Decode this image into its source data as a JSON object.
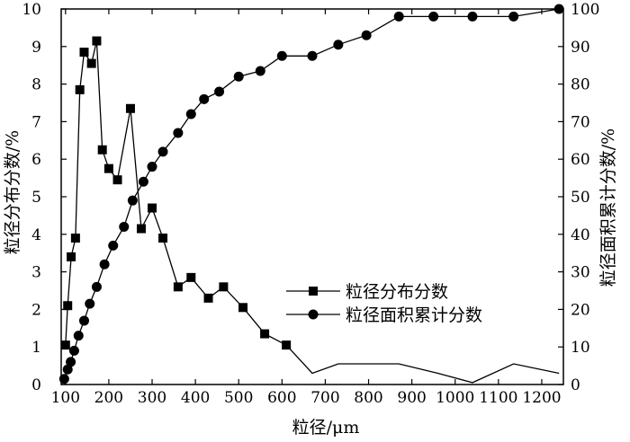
{
  "chart_data": {
    "type": "line",
    "xlabel": "粒径/μm",
    "ylabel_left": "粒径分布分数/%",
    "ylabel_right": "粒径面积累计分数/%",
    "xlim": [
      90,
      1250
    ],
    "ylim_left": [
      0,
      10
    ],
    "ylim_right": [
      0,
      100
    ],
    "xticks": [
      100,
      200,
      300,
      400,
      500,
      600,
      700,
      800,
      900,
      1000,
      1100,
      1200
    ],
    "yticks_left": [
      0,
      1,
      2,
      3,
      4,
      5,
      6,
      7,
      8,
      9,
      10
    ],
    "yticks_right": [
      0,
      10,
      20,
      30,
      40,
      50,
      60,
      70,
      80,
      90,
      100
    ],
    "grid": false,
    "legend_position": "center-right",
    "series": [
      {
        "name": "粒径分布分数",
        "marker": "square",
        "axis": "left",
        "x": [
          100,
          105,
          113,
          123,
          133,
          143,
          160,
          172,
          185,
          200,
          220,
          250,
          275,
          300,
          325,
          360,
          390,
          430,
          465,
          510,
          560,
          610
        ],
        "y": [
          1.05,
          2.1,
          3.4,
          3.9,
          7.85,
          8.85,
          8.55,
          9.15,
          6.25,
          5.75,
          5.45,
          7.35,
          4.15,
          4.7,
          3.9,
          2.6,
          2.85,
          2.3,
          2.6,
          2.05,
          1.35,
          1.05
        ]
      },
      {
        "name": "",
        "marker": "none",
        "axis": "left",
        "x": [
          610,
          670,
          730,
          870,
          960,
          1040,
          1135,
          1240
        ],
        "y": [
          1.05,
          0.3,
          0.55,
          0.55,
          0.3,
          0.05,
          0.55,
          0.3
        ]
      },
      {
        "name": "粒径面积累计分数",
        "marker": "circle",
        "axis": "right",
        "x": [
          97,
          105,
          112,
          120,
          130,
          143,
          156,
          172,
          190,
          210,
          235,
          255,
          280,
          300,
          325,
          360,
          390,
          420,
          455,
          500,
          550,
          600,
          670,
          730,
          795,
          870,
          950,
          1040,
          1135,
          1240
        ],
        "y": [
          1.5,
          4,
          6,
          9,
          13,
          17,
          21.5,
          26,
          32,
          37,
          42,
          49,
          54,
          58,
          62,
          67,
          72,
          76,
          78,
          82,
          83.5,
          87.5,
          87.5,
          90.5,
          93,
          98,
          98,
          98,
          98,
          100
        ]
      }
    ]
  }
}
